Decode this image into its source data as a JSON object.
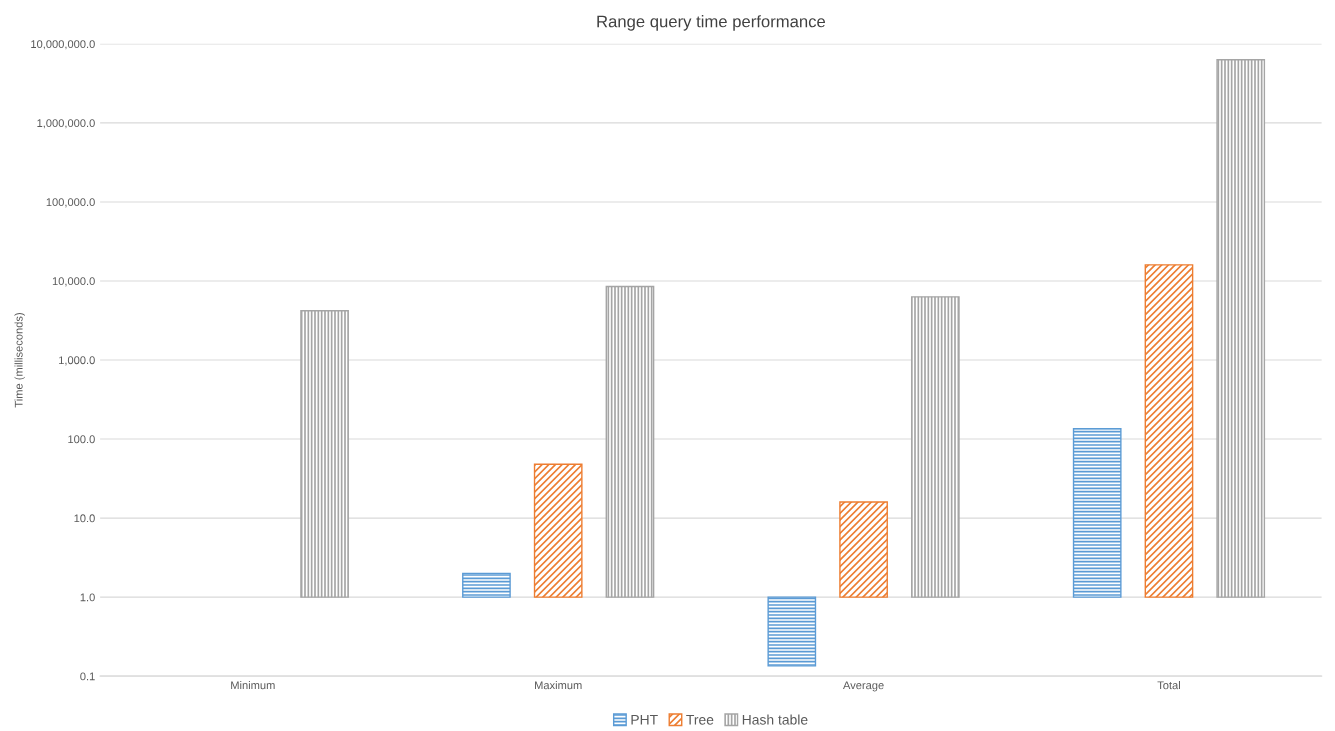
{
  "chart_data": {
    "type": "bar",
    "title": "Range query time performance",
    "ylabel": "Time (milliseconds)",
    "categories": [
      "Minimum",
      "Maximum",
      "Average",
      "Total"
    ],
    "series": [
      {
        "name": "PHT",
        "color": "#5b9bd5",
        "values": [
          null,
          1.0,
          -0.865,
          134
        ],
        "base": [
          null,
          1,
          1,
          1
        ]
      },
      {
        "name": "Tree",
        "color": "#ed7d31",
        "values": [
          null,
          47,
          15,
          15999
        ],
        "base": [
          null,
          1,
          1,
          1
        ]
      },
      {
        "name": "Hash table",
        "color": "#a5a5a5",
        "values": [
          4199,
          8499,
          6299,
          6299999
        ],
        "base": [
          1,
          1,
          1,
          1
        ]
      }
    ],
    "log": "y",
    "ylim": [
      0.1,
      10000000
    ],
    "yticks": [
      {
        "value": 0.1,
        "label": "0.1"
      },
      {
        "value": 1,
        "label": "1.0"
      },
      {
        "value": 10,
        "label": "10.0"
      },
      {
        "value": 100,
        "label": "100.0"
      },
      {
        "value": 1000,
        "label": "1,000.0"
      },
      {
        "value": 10000,
        "label": "10,000.0"
      },
      {
        "value": 100000,
        "label": "100,000.0"
      },
      {
        "value": 1000000,
        "label": "1,000,000.0"
      },
      {
        "value": 10000000,
        "label": "10,000,000.0"
      }
    ],
    "grid": "y",
    "legend": "bottom"
  }
}
